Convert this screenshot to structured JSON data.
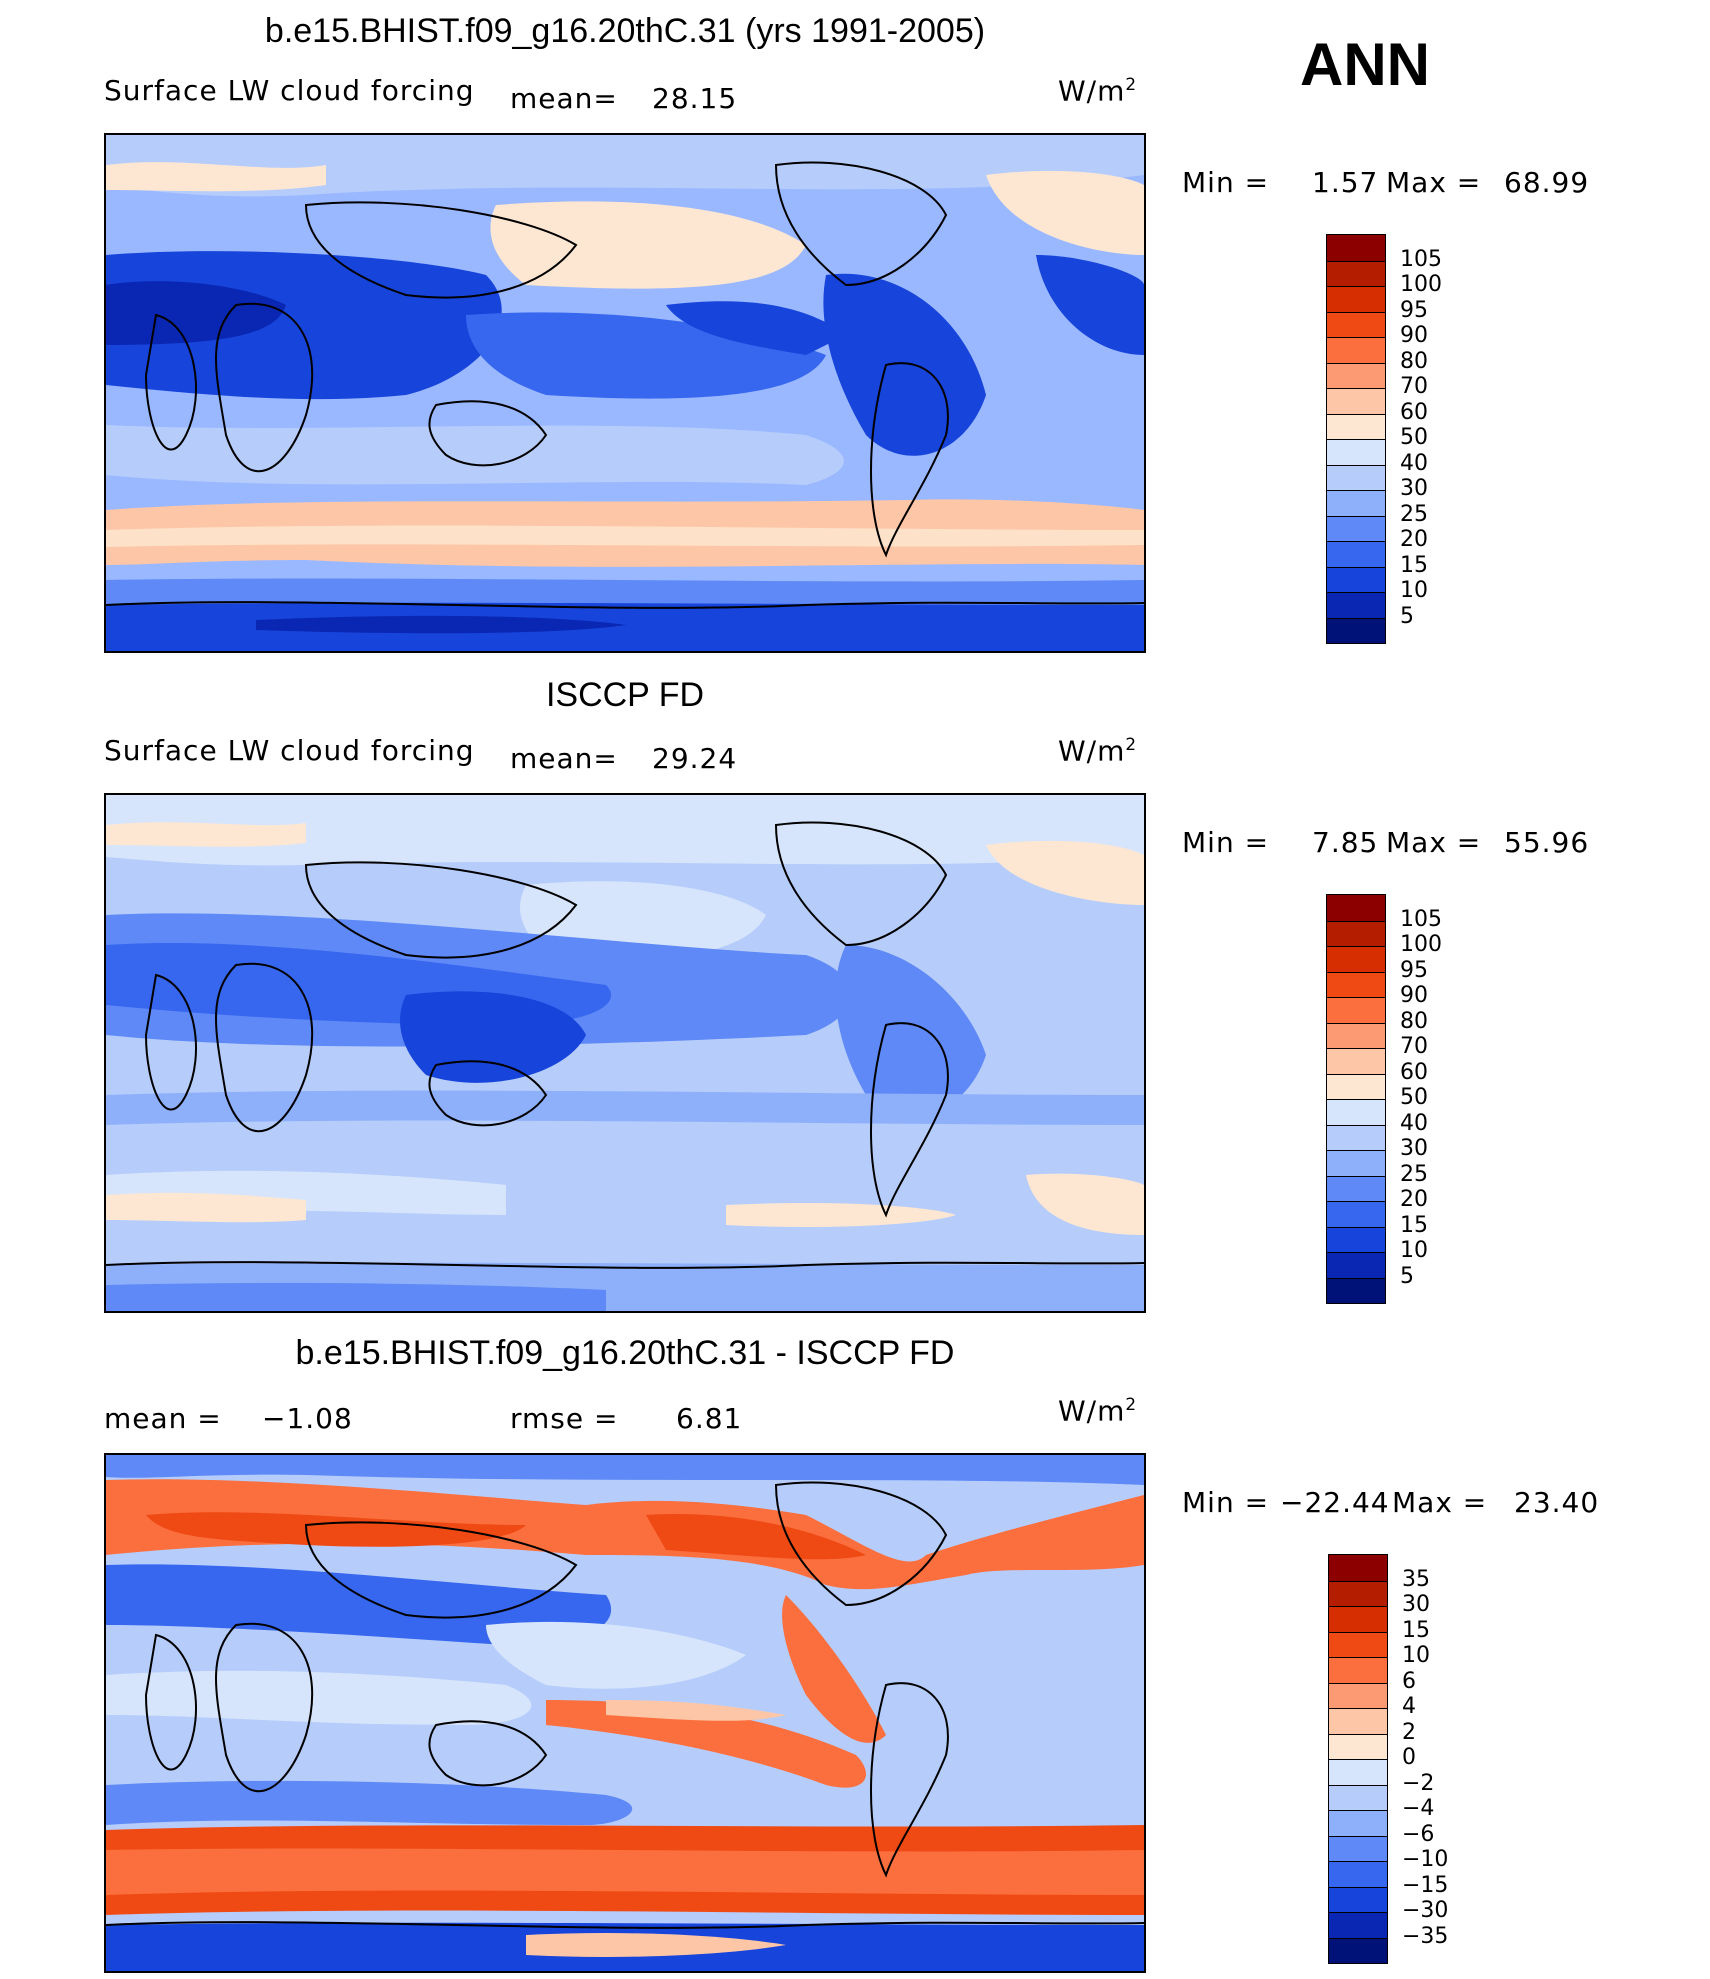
{
  "season": "ANN",
  "units": "W/m",
  "units_sup": "2",
  "panels": [
    {
      "title": "b.e15.BHIST.f09_g16.20thC.31 (yrs 1991-2005)",
      "variable": "Surface LW cloud forcing",
      "mean_label": "mean=",
      "mean_value": "28.15",
      "min_label": "Min =",
      "min_value": "1.57",
      "max_label": "Max =",
      "max_value": "68.99",
      "colorbar_labels": [
        "105",
        "100",
        "95",
        "90",
        "80",
        "70",
        "60",
        "50",
        "40",
        "30",
        "25",
        "20",
        "15",
        "10",
        "5"
      ],
      "colors": [
        "#8c0000",
        "#b51d00",
        "#d62e00",
        "#ef4a14",
        "#fb6f3e",
        "#fc9a73",
        "#fdc6a6",
        "#fde7d2",
        "#d6e5fb",
        "#b6cdfb",
        "#8eb0fb",
        "#5f89f6",
        "#3767ef",
        "#1744db",
        "#0a27b3",
        "#001177"
      ]
    },
    {
      "title": "ISCCP FD",
      "variable": "Surface LW cloud forcing",
      "mean_label": "mean=",
      "mean_value": "29.24",
      "min_label": "Min =",
      "min_value": "7.85",
      "max_label": "Max =",
      "max_value": "55.96",
      "colorbar_labels": [
        "105",
        "100",
        "95",
        "90",
        "80",
        "70",
        "60",
        "50",
        "40",
        "30",
        "25",
        "20",
        "15",
        "10",
        "5"
      ],
      "colors": [
        "#8c0000",
        "#b51d00",
        "#d62e00",
        "#ef4a14",
        "#fb6f3e",
        "#fc9a73",
        "#fdc6a6",
        "#fde7d2",
        "#d6e5fb",
        "#b6cdfb",
        "#8eb0fb",
        "#5f89f6",
        "#3767ef",
        "#1744db",
        "#0a27b3",
        "#001177"
      ]
    },
    {
      "title": "b.e15.BHIST.f09_g16.20thC.31 - ISCCP FD",
      "mean_label": "mean =",
      "mean_value": "−1.08",
      "rmse_label": "rmse =",
      "rmse_value": "6.81",
      "min_label": "Min =",
      "min_value": "−22.44",
      "max_label": "Max =",
      "max_value": "23.40",
      "colorbar_labels": [
        "35",
        "30",
        "15",
        "10",
        "6",
        "4",
        "2",
        "0",
        "−2",
        "−4",
        "−6",
        "−10",
        "−15",
        "−30",
        "−35"
      ],
      "colors": [
        "#8c0000",
        "#b51d00",
        "#d62e00",
        "#ef4a14",
        "#fb6f3e",
        "#fc9a73",
        "#fdc6a6",
        "#fde7d2",
        "#d6e5fb",
        "#b6cdfb",
        "#8eb0fb",
        "#5f89f6",
        "#3767ef",
        "#1744db",
        "#0a27b3",
        "#001177"
      ]
    }
  ]
}
